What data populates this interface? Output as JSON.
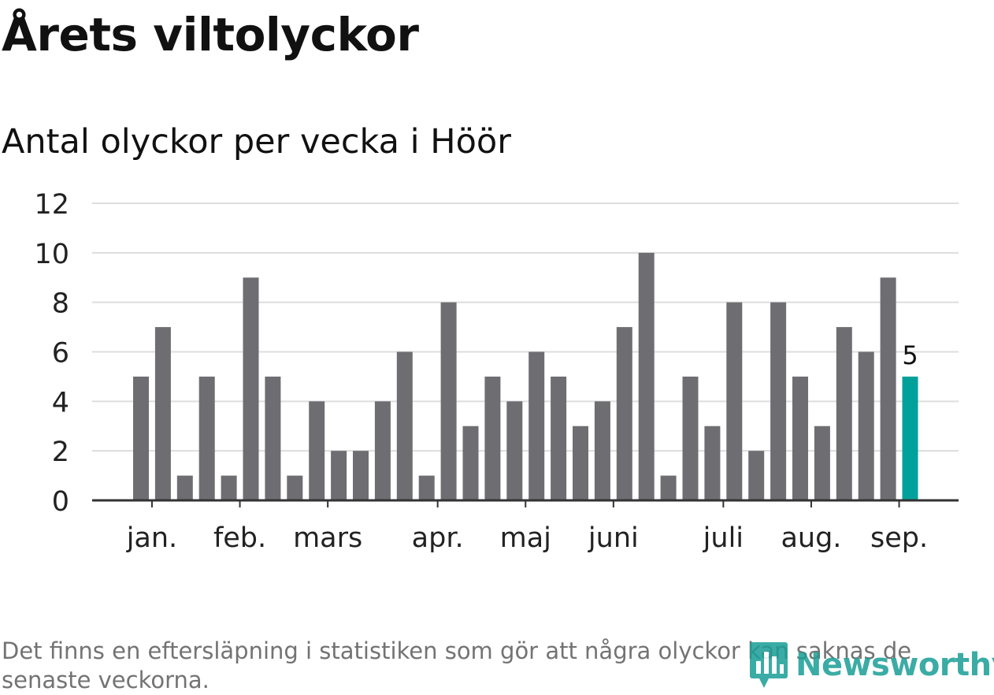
{
  "title": "Årets viltolyckor",
  "subtitle": "Antal olyckor per vecka i Höör",
  "footnote": "Det finns en eftersläpning i statistiken som gör att några olyckor kan saknas de senaste veckorna.",
  "logo": {
    "text": "Newsworthy",
    "icon": "bar-chart-speech-bubble-icon",
    "color": "#1a9e96"
  },
  "chart_data": {
    "type": "bar",
    "title": "Antal olyckor per vecka i Höör",
    "xlabel": "",
    "ylabel": "",
    "ylim": [
      0,
      12
    ],
    "yticks": [
      0,
      2,
      4,
      6,
      8,
      10,
      12
    ],
    "grid": true,
    "values": [
      5,
      7,
      1,
      5,
      1,
      9,
      5,
      1,
      4,
      2,
      2,
      4,
      6,
      1,
      8,
      3,
      5,
      4,
      6,
      5,
      3,
      4,
      7,
      10,
      1,
      5,
      3,
      8,
      2,
      8,
      5,
      3,
      7,
      6,
      9,
      5
    ],
    "month_labels": [
      {
        "label": "jan.",
        "bar_index": 0.5
      },
      {
        "label": "feb.",
        "bar_index": 4.5
      },
      {
        "label": "mars",
        "bar_index": 8.5
      },
      {
        "label": "apr.",
        "bar_index": 13.5
      },
      {
        "label": "maj",
        "bar_index": 17.5
      },
      {
        "label": "juni",
        "bar_index": 21.5
      },
      {
        "label": "juli",
        "bar_index": 26.5
      },
      {
        "label": "aug.",
        "bar_index": 30.5
      },
      {
        "label": "sep.",
        "bar_index": 34.5
      }
    ],
    "highlight_index": 35,
    "highlight_label": "5",
    "colors": {
      "bar": "#6e6d72",
      "highlight": "#00a19a",
      "grid": "#dddddd",
      "axis": "#333333"
    }
  }
}
